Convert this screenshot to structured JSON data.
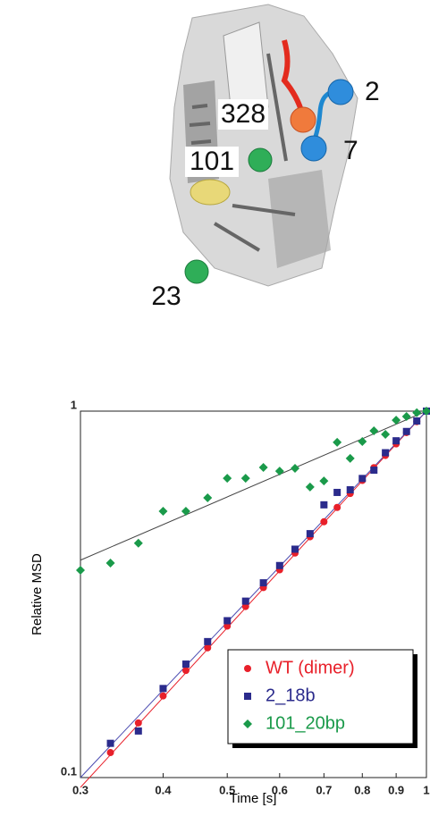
{
  "illustration": {
    "labels": [
      "2",
      "328",
      "7",
      "101",
      "23"
    ]
  },
  "chart_data": {
    "type": "scatter",
    "xlabel": "Time [s]",
    "ylabel": "Relative MSD",
    "xscale": "log",
    "yscale": "log",
    "xlim": [
      0.3,
      1
    ],
    "ylim": [
      0.1,
      1
    ],
    "xticks": [
      0.3,
      0.4,
      0.5,
      0.6,
      0.7,
      0.8,
      0.9,
      1
    ],
    "yticks": [
      0.1,
      1
    ],
    "legend": "lower right",
    "x": [
      0.3,
      0.333,
      0.367,
      0.4,
      0.433,
      0.467,
      0.5,
      0.533,
      0.567,
      0.6,
      0.633,
      0.667,
      0.7,
      0.733,
      0.767,
      0.8,
      0.833,
      0.867,
      0.9,
      0.933,
      0.967,
      1
    ],
    "series": [
      {
        "name": "WT (dimer)",
        "color": "#e8202a",
        "marker": "circle",
        "fit_color": "#e8202a",
        "values": [
          null,
          0.117,
          0.141,
          0.167,
          0.196,
          0.226,
          0.259,
          0.293,
          0.33,
          0.369,
          0.41,
          0.454,
          0.499,
          0.546,
          0.596,
          0.647,
          0.701,
          0.757,
          0.814,
          0.874,
          0.936,
          1
        ],
        "fit": {
          "x": [
            0.3,
            1
          ],
          "values": [
            0.094,
            1
          ]
        }
      },
      {
        "name": "2_18b",
        "color": "#2b2b8c",
        "marker": "square",
        "fit_color": "#4a4ab0",
        "values": [
          null,
          0.124,
          0.134,
          0.175,
          0.204,
          0.235,
          0.268,
          0.303,
          0.34,
          0.379,
          0.42,
          0.463,
          0.555,
          0.6,
          0.61,
          0.655,
          0.69,
          0.77,
          0.83,
          0.88,
          0.94,
          1
        ],
        "fit": {
          "x": [
            0.3,
            1
          ],
          "values": [
            0.1,
            1
          ]
        }
      },
      {
        "name": "101_20bp",
        "color": "#1a9a4a",
        "marker": "diamond",
        "fit_color": "#444444",
        "values": [
          0.368,
          0.385,
          0.436,
          0.533,
          0.533,
          0.58,
          0.656,
          0.656,
          0.702,
          0.686,
          0.698,
          0.621,
          0.645,
          0.822,
          0.743,
          0.826,
          0.884,
          0.864,
          0.945,
          0.967,
          0.99,
          1
        ],
        "fit": {
          "x": [
            0.3,
            1
          ],
          "values": [
            0.392,
            1
          ]
        }
      }
    ]
  }
}
